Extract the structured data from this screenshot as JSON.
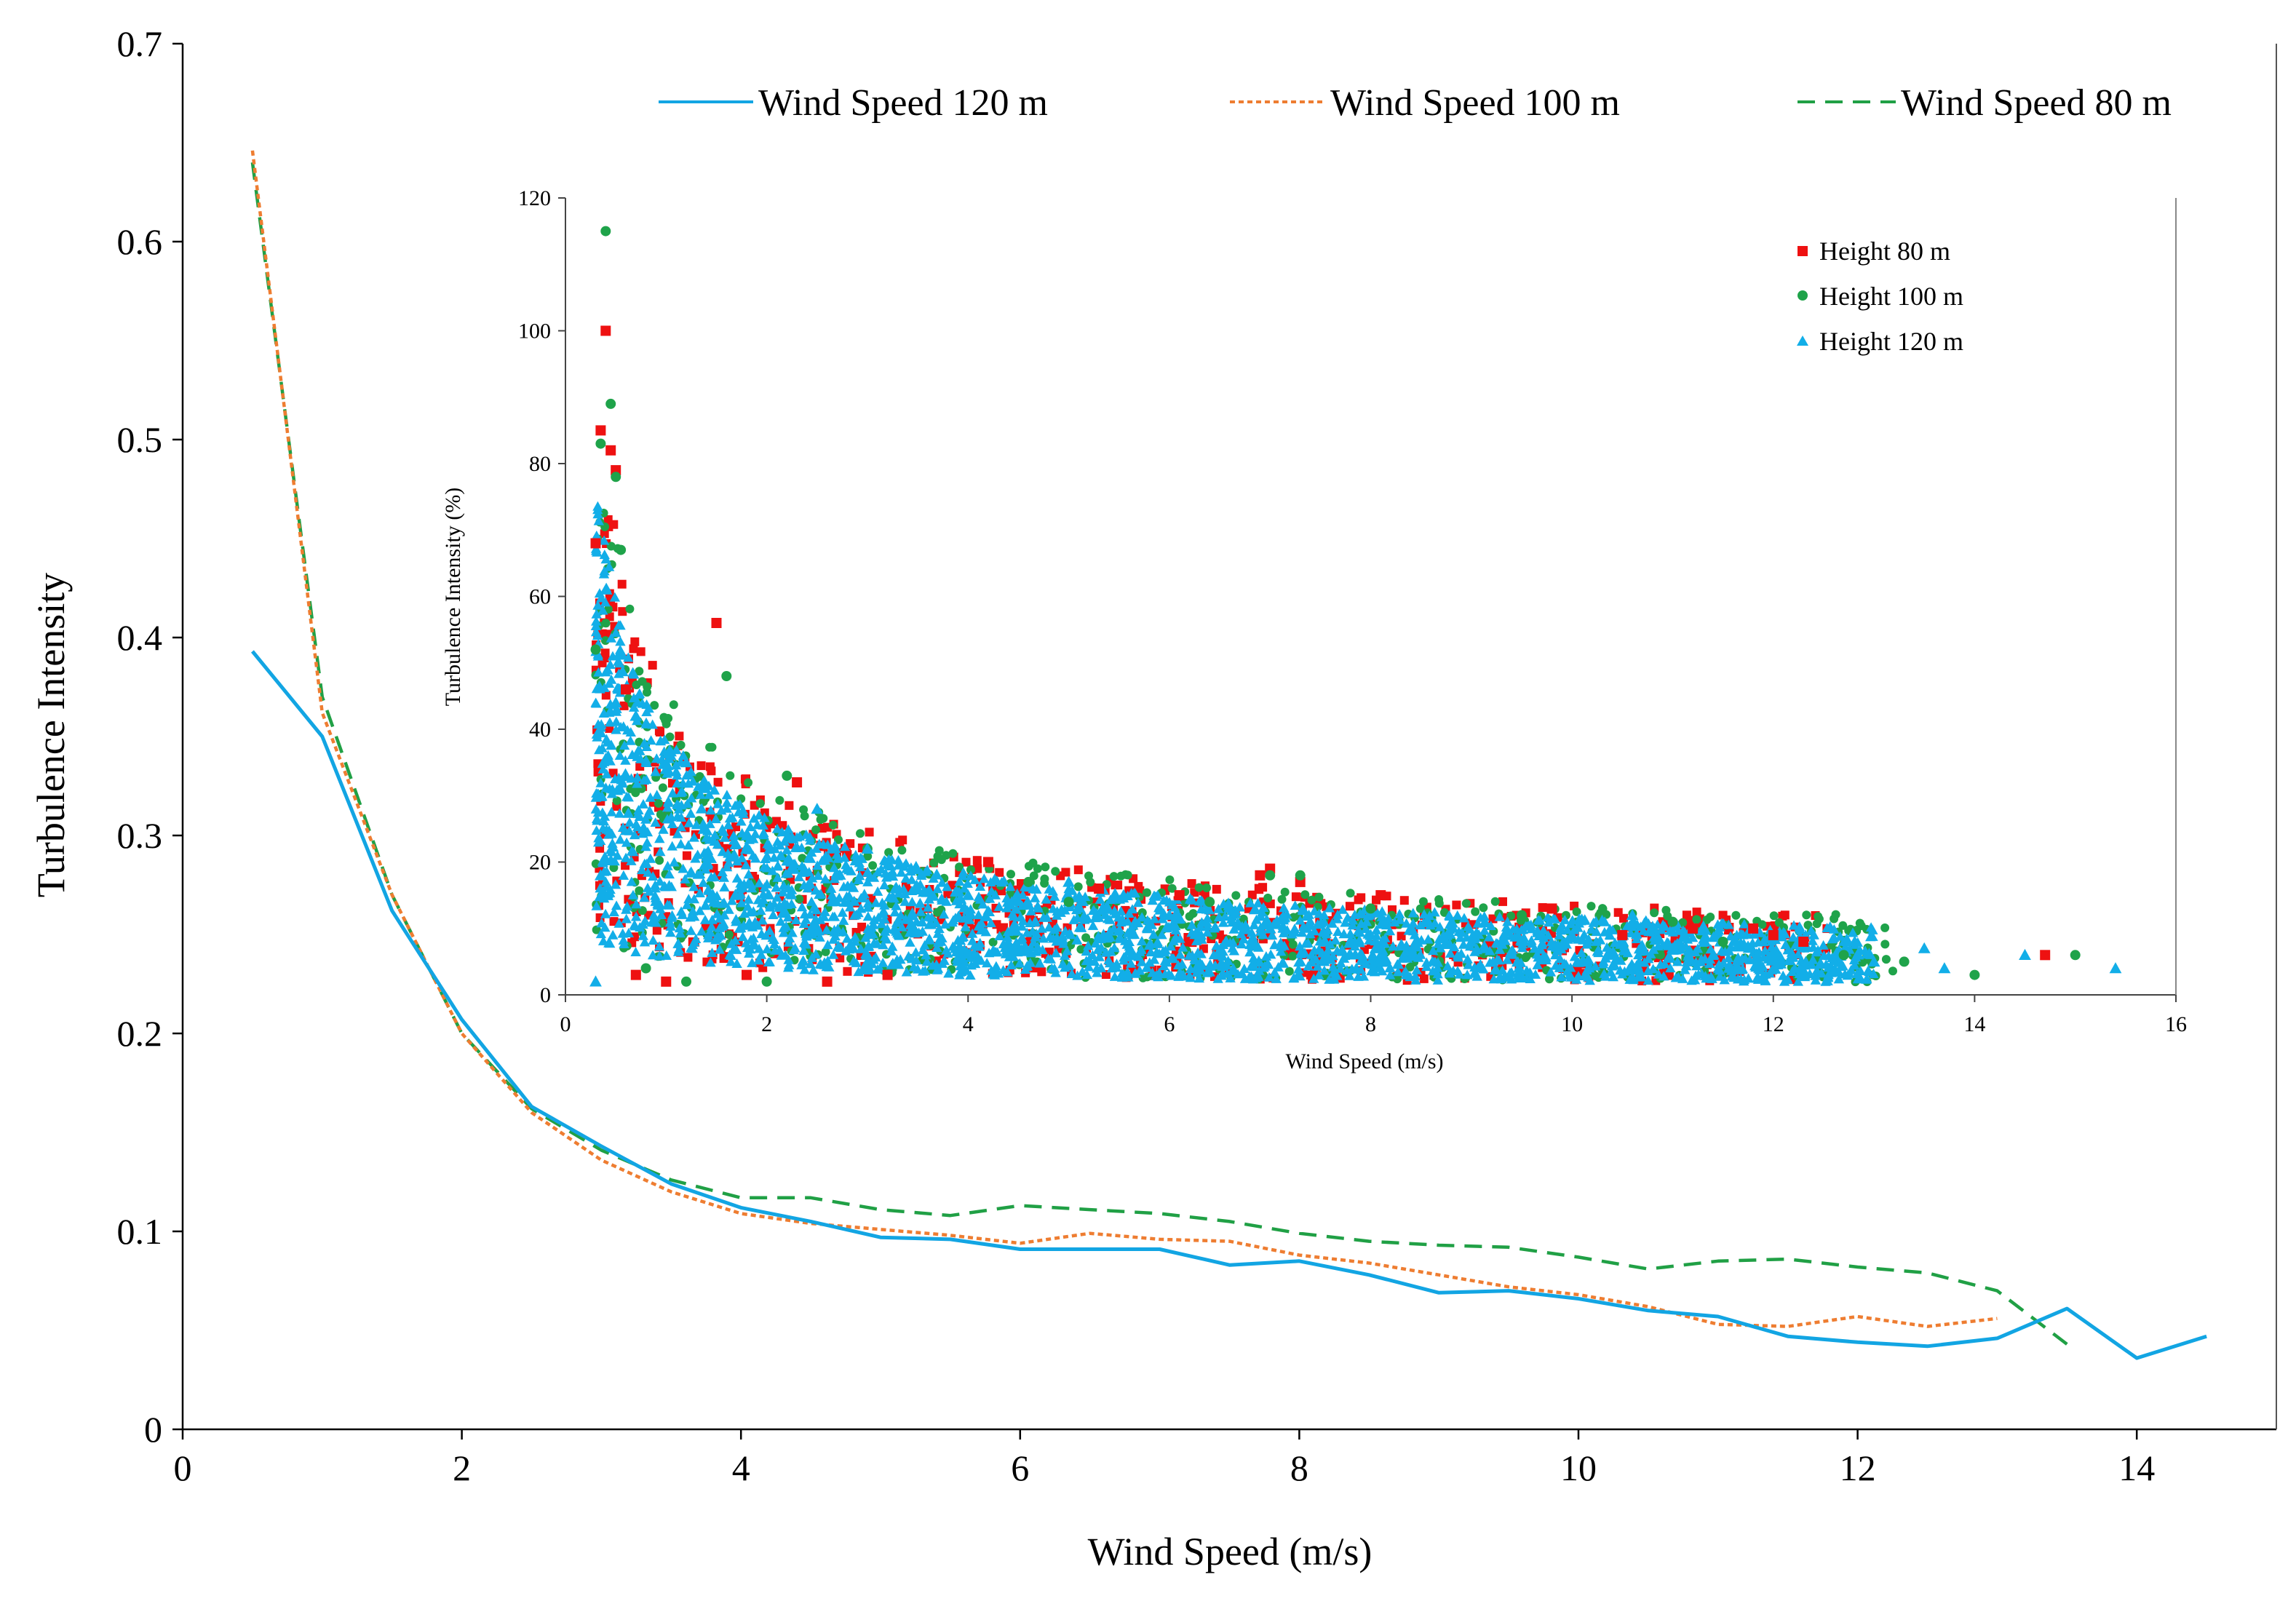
{
  "chart_data": [
    {
      "type": "line",
      "title": "",
      "xlabel": "Wind Speed (m/s)",
      "ylabel": "Turbulence Intensity",
      "xlim": [
        0,
        15
      ],
      "ylim": [
        0,
        0.7
      ],
      "xticks": [
        "0",
        "2",
        "4",
        "6",
        "8",
        "10",
        "12",
        "14"
      ],
      "yticks": [
        "0",
        "0.1",
        "0.2",
        "0.3",
        "0.4",
        "0.5",
        "0.6",
        "0.7"
      ],
      "legend_position": "top",
      "series": [
        {
          "name": "Wind Speed 120 m",
          "color": "#12a5e3",
          "style": "solid",
          "x": [
            0.5,
            1.0,
            1.5,
            2.0,
            2.5,
            3.0,
            3.5,
            4.0,
            4.5,
            5.0,
            5.5,
            6.0,
            6.5,
            7.0,
            7.5,
            8.0,
            8.5,
            9.0,
            9.5,
            10.0,
            10.5,
            11.0,
            11.5,
            12.0,
            12.5,
            13.0,
            13.5,
            14.0,
            14.5
          ],
          "y": [
            0.393,
            0.35,
            0.262,
            0.207,
            0.163,
            0.143,
            0.124,
            0.112,
            0.105,
            0.097,
            0.096,
            0.091,
            0.091,
            0.091,
            0.083,
            0.085,
            0.078,
            0.069,
            0.07,
            0.066,
            0.06,
            0.057,
            0.047,
            0.044,
            0.042,
            0.046,
            0.061,
            0.036,
            0.047
          ]
        },
        {
          "name": "Wind Speed 100 m",
          "color": "#ee7d31",
          "style": "dotted",
          "x": [
            0.5,
            1.0,
            1.5,
            2.0,
            2.5,
            3.0,
            3.5,
            4.0,
            4.5,
            5.0,
            5.5,
            6.0,
            6.5,
            7.0,
            7.5,
            8.0,
            8.5,
            9.0,
            9.5,
            10.0,
            10.5,
            11.0,
            11.5,
            12.0,
            12.5,
            13.0
          ],
          "y": [
            0.646,
            0.362,
            0.27,
            0.2,
            0.16,
            0.136,
            0.12,
            0.109,
            0.104,
            0.101,
            0.098,
            0.094,
            0.099,
            0.096,
            0.095,
            0.088,
            0.084,
            0.078,
            0.072,
            0.068,
            0.062,
            0.053,
            0.052,
            0.057,
            0.052,
            0.056
          ]
        },
        {
          "name": "Wind Speed 80 m",
          "color": "#20a045",
          "style": "dashed",
          "x": [
            0.5,
            1.0,
            1.5,
            2.0,
            2.5,
            3.0,
            3.5,
            4.0,
            4.5,
            5.0,
            5.5,
            6.0,
            6.5,
            7.0,
            7.5,
            8.0,
            8.5,
            9.0,
            9.5,
            10.0,
            10.5,
            11.0,
            11.5,
            12.0,
            12.5,
            13.0,
            13.5
          ],
          "y": [
            0.64,
            0.37,
            0.27,
            0.2,
            0.162,
            0.141,
            0.126,
            0.117,
            0.117,
            0.111,
            0.108,
            0.113,
            0.111,
            0.109,
            0.105,
            0.099,
            0.095,
            0.093,
            0.092,
            0.087,
            0.081,
            0.085,
            0.086,
            0.082,
            0.079,
            0.07,
            0.043
          ]
        }
      ]
    },
    {
      "type": "scatter",
      "title": "",
      "xlabel": "Wind Speed (m/s)",
      "ylabel": "Turbulence Intensity (%)",
      "xlim": [
        0,
        16
      ],
      "ylim": [
        0,
        120
      ],
      "xticks": [
        "0",
        "2",
        "4",
        "6",
        "8",
        "10",
        "12",
        "14",
        "16"
      ],
      "yticks": [
        "0",
        "20",
        "40",
        "60",
        "80",
        "100",
        "120"
      ],
      "legend_position": "top-right",
      "series": [
        {
          "name": "Height 80 m",
          "color": "#ee1111",
          "marker": "square",
          "x": [
            0.4,
            0.45,
            0.35,
            0.5,
            1.5,
            0.3,
            0.6,
            2.3,
            4.2,
            6.9,
            7.0,
            7.3,
            8.1,
            9.8,
            10.5,
            11.2,
            11.8,
            12.0,
            12.3,
            14.7,
            0.7,
            1.0,
            1.8,
            2.6,
            3.2,
            5.3,
            6.1
          ],
          "y": [
            100,
            82,
            85,
            79,
            56,
            68,
            46,
            32,
            20,
            18,
            19,
            17,
            15,
            13,
            9,
            10,
            10,
            9,
            8,
            6,
            3,
            2,
            3,
            2,
            3,
            16,
            15
          ]
        },
        {
          "name": "Height 100 m",
          "color": "#1fa34a",
          "marker": "circle",
          "x": [
            0.4,
            0.45,
            0.35,
            0.5,
            0.55,
            1.6,
            0.3,
            2.2,
            3.0,
            4.6,
            7.0,
            7.3,
            8.0,
            9.5,
            11.0,
            11.5,
            12.7,
            13.3,
            14.0,
            15.0,
            0.8,
            1.2,
            2.0,
            5.0,
            6.4
          ],
          "y": [
            115,
            89,
            83,
            78,
            67,
            48,
            52,
            33,
            22,
            17,
            18,
            18,
            13,
            12,
            11,
            8,
            6,
            5,
            3,
            6,
            4,
            2,
            2,
            14,
            14
          ]
        },
        {
          "name": "Height 120 m",
          "color": "#12aee8",
          "marker": "triangle",
          "x": [
            0.3,
            0.35,
            0.5,
            0.7,
            1.2,
            2.5,
            3.0,
            4.0,
            5.0,
            6.0,
            7.0,
            8.0,
            9.0,
            10.0,
            10.6,
            11.0,
            12.0,
            13.0,
            13.5,
            13.7,
            14.5,
            15.4
          ],
          "y": [
            2,
            18,
            44,
            42,
            35,
            28,
            22,
            15,
            17,
            12,
            10,
            9,
            8,
            9,
            12,
            7,
            6,
            5,
            7,
            4,
            6,
            4
          ]
        }
      ]
    }
  ]
}
